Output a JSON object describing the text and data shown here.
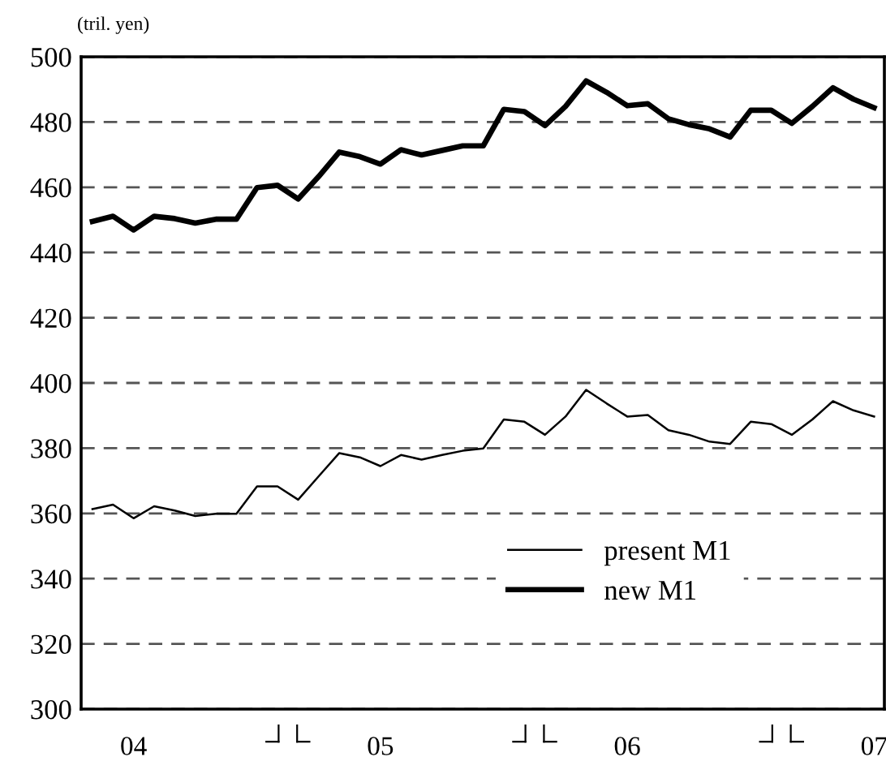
{
  "chart_data": {
    "type": "line",
    "ylabel": "(tril. yen)",
    "categories": [
      null,
      null,
      "04",
      null,
      null,
      null,
      null,
      null,
      null,
      null,
      null,
      null,
      null,
      null,
      "05",
      null,
      null,
      null,
      null,
      null,
      null,
      null,
      null,
      null,
      null,
      null,
      "06",
      null,
      null,
      null,
      null,
      null,
      null,
      null,
      null,
      null,
      null,
      null,
      "07"
    ],
    "series": [
      {
        "name": "present M1",
        "color": "#000000",
        "values": [
          361.3,
          362.7,
          358.5,
          362.2,
          360.9,
          359.2,
          359.9,
          359.9,
          368.3,
          368.3,
          364.2,
          371.4,
          378.5,
          377.2,
          374.5,
          377.9,
          376.5,
          377.9,
          379.2,
          379.9,
          388.8,
          388.1,
          384.1,
          389.7,
          397.9,
          393.7,
          389.7,
          390.2,
          385.5,
          384.1,
          382.0,
          381.3,
          388.1,
          387.4,
          384.1,
          388.8,
          394.4,
          391.6,
          389.7
        ]
      },
      {
        "name": "new M1",
        "color": "#000000",
        "values": [
          449.5,
          451.1,
          446.9,
          451.1,
          450.4,
          449.0,
          450.2,
          450.2,
          459.9,
          460.6,
          456.4,
          463.3,
          470.8,
          469.4,
          467.1,
          471.5,
          469.9,
          471.3,
          472.7,
          472.7,
          483.9,
          483.2,
          478.9,
          484.8,
          492.6,
          489.1,
          485.0,
          485.6,
          481.0,
          479.2,
          477.9,
          475.4,
          483.6,
          483.6,
          479.6,
          484.8,
          490.5,
          487.0,
          484.4
        ]
      }
    ],
    "ylim": [
      300,
      500
    ],
    "yticks": [
      300,
      320,
      340,
      360,
      380,
      400,
      420,
      440,
      460,
      480,
      500
    ],
    "grid": "y",
    "legend": "bottom right",
    "marker": "none",
    "line_style": "solid"
  }
}
